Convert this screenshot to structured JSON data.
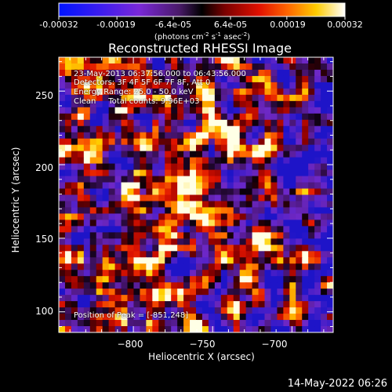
{
  "colorbar": {
    "tick_labels": [
      "-0.00032",
      "-0.00019",
      "-6.4e-05",
      "6.4e-05",
      "0.00019",
      "0.00032"
    ],
    "tick_values": [
      -0.00032,
      -0.00019,
      -6.4e-05,
      6.4e-05,
      0.00019,
      0.00032
    ],
    "range": [
      -0.00032,
      0.00032
    ],
    "units_text_1": "(photons cm",
    "units_sup_1": "-2",
    "units_text_2": " s",
    "units_sup_2": "-1",
    "units_text_3": " asec",
    "units_sup_3": "-2",
    "units_text_4": ")"
  },
  "chart_data": {
    "type": "heatmap",
    "title": "Reconstructed RHESSI Image",
    "xlabel": "Heliocentric X (arcsec)",
    "ylabel": "Heliocentric Y (arcsec)",
    "xlim": [
      -847,
      -674
    ],
    "ylim": [
      86,
      273
    ],
    "x_ticks": [
      -800,
      -750,
      -700
    ],
    "x_tick_labels": [
      "−800",
      "−750",
      "−700"
    ],
    "y_ticks": [
      100,
      150,
      200,
      250
    ],
    "y_tick_labels": [
      "100",
      "150",
      "200",
      "250"
    ],
    "colormap": "rainbow-blue-red-yellow-white",
    "peak_position": [
      -851,
      248
    ]
  },
  "annotations": {
    "line1": "23-May-2013 06:37:56.000 to 06:43:56.000",
    "line2": "Detectors: 3F 4F 5F 6F 7F 8F, Att 0",
    "line3": "Energy Range: 25.0 - 50.0 keV",
    "line4": "Clean     Total counts: 9.96E+03",
    "peak": "Position of Peak = [-851,248]"
  },
  "footer": {
    "timestamp": "14-May-2022 06:26"
  }
}
